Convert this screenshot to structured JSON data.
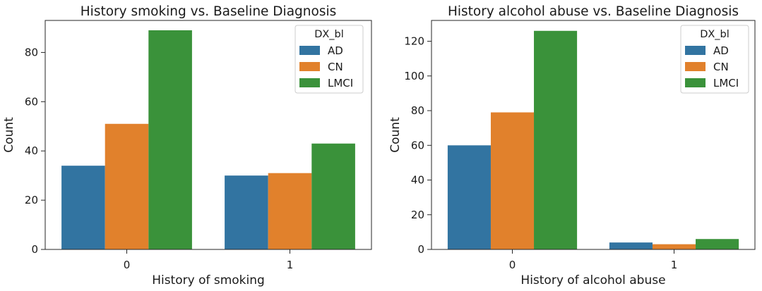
{
  "chart_data": [
    {
      "type": "bar",
      "title": "History smoking vs. Baseline Diagnosis",
      "xlabel": "History of smoking",
      "ylabel": "Count",
      "categories": [
        "0",
        "1"
      ],
      "ylim": [
        0,
        93
      ],
      "yticks": [
        0,
        20,
        40,
        60,
        80
      ],
      "grid": false,
      "legend": {
        "title": "DX_bl",
        "placement": "top-right"
      },
      "series": [
        {
          "name": "AD",
          "color": "#3274a1",
          "values": [
            34,
            30
          ]
        },
        {
          "name": "CN",
          "color": "#e1812c",
          "values": [
            51,
            31
          ]
        },
        {
          "name": "LMCI",
          "color": "#3a923a",
          "values": [
            89,
            43
          ]
        }
      ]
    },
    {
      "type": "bar",
      "title": "History alcohol abuse vs. Baseline Diagnosis",
      "xlabel": "History of alcohol abuse",
      "ylabel": "Count",
      "categories": [
        "0",
        "1"
      ],
      "ylim": [
        0,
        132
      ],
      "yticks": [
        0,
        20,
        40,
        60,
        80,
        100,
        120
      ],
      "grid": false,
      "legend": {
        "title": "DX_bl",
        "placement": "top-right"
      },
      "series": [
        {
          "name": "AD",
          "color": "#3274a1",
          "values": [
            60,
            4
          ]
        },
        {
          "name": "CN",
          "color": "#e1812c",
          "values": [
            79,
            3
          ]
        },
        {
          "name": "LMCI",
          "color": "#3a923a",
          "values": [
            126,
            6
          ]
        }
      ]
    }
  ]
}
